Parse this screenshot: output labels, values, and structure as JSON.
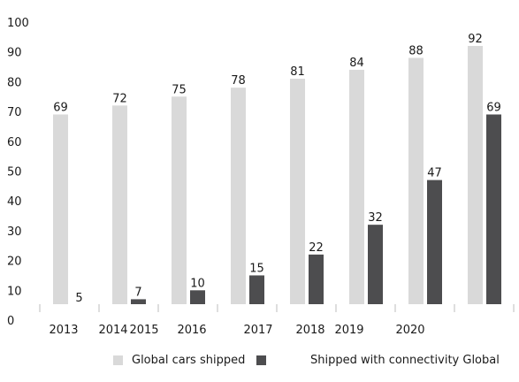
{
  "chart_data": {
    "type": "bar",
    "categories": [
      "2013",
      "2014",
      "2015",
      "2016",
      "2017",
      "2018",
      "2019",
      "2020",
      ""
    ],
    "series": [
      {
        "name": "Global cars shipped",
        "values": [
          69,
          72,
          75,
          78,
          81,
          84,
          88,
          92,
          null
        ],
        "color": "#d9d9d9"
      },
      {
        "name": "Shipped with connectivity Global",
        "values": [
          5,
          7,
          10,
          15,
          22,
          32,
          47,
          69,
          null
        ],
        "color": "#4d4d4f"
      }
    ],
    "x_tick_labels": [
      "2013",
      "2014",
      "2015",
      "2016",
      "2017",
      "2018",
      "2019",
      "2020"
    ],
    "y_ticks": [
      0,
      10,
      20,
      30,
      40,
      50,
      60,
      70,
      80,
      90,
      100
    ],
    "ylim": [
      0,
      100
    ],
    "title": "",
    "xlabel": "",
    "ylabel": "",
    "grid": false,
    "legend_position": "bottom"
  }
}
